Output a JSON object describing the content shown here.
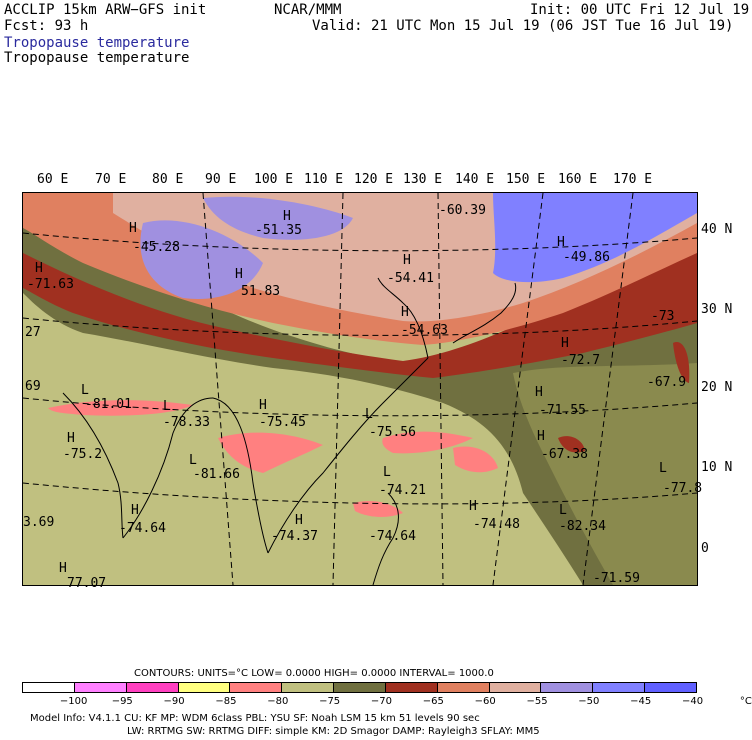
{
  "header": {
    "model": "ACCLIP 15km ARW−GFS init",
    "org": "NCAR/MMM",
    "init": "Init: 00 UTC Fri 12 Jul 19",
    "fcst": "Fcst:   93 h",
    "valid": "Valid: 21 UTC Mon 15 Jul 19 (06 JST Tue 16 Jul 19)",
    "field_title_1": "Tropopause temperature",
    "field_title_2": "Tropopause temperature"
  },
  "axes": {
    "lon_labels": [
      "60 E",
      "70 E",
      "80 E",
      "90 E",
      "100 E",
      "110 E",
      "120 E",
      "130 E",
      "140 E",
      "150 E",
      "160 E",
      "170 E"
    ],
    "lat_labels": [
      "40 N",
      "30 N",
      "20 N",
      "10 N",
      "0"
    ]
  },
  "map": {
    "extremes": [
      {
        "kind": "H",
        "value": "-45.28"
      },
      {
        "kind": "H",
        "value": "-51.35"
      },
      {
        "kind": "",
        "value": "-60.39"
      },
      {
        "kind": "H",
        "value": "-49.86"
      },
      {
        "kind": "H",
        "value": "-71.63"
      },
      {
        "kind": "H",
        "value": "51.83"
      },
      {
        "kind": "H",
        "value": "-54.41"
      },
      {
        "kind": "H",
        "value": "-54.63"
      },
      {
        "kind": "",
        "value": "-73"
      },
      {
        "kind": "",
        "value": "27"
      },
      {
        "kind": "H",
        "value": "-72.7"
      },
      {
        "kind": "",
        "value": "-67.9"
      },
      {
        "kind": "",
        "value": "69"
      },
      {
        "kind": "L",
        "value": "-81.01"
      },
      {
        "kind": "L",
        "value": "-78.33"
      },
      {
        "kind": "H",
        "value": "-75.45"
      },
      {
        "kind": "H",
        "value": "-71.55"
      },
      {
        "kind": "L",
        "value": "-75.56"
      },
      {
        "kind": "H",
        "value": "-75.2"
      },
      {
        "kind": "H",
        "value": "-67.38"
      },
      {
        "kind": "L",
        "value": "-81.66"
      },
      {
        "kind": "L",
        "value": "-77.8"
      },
      {
        "kind": "L",
        "value": "-74.21"
      },
      {
        "kind": "H",
        "value": "-74.64"
      },
      {
        "kind": "H",
        "value": "-74.48"
      },
      {
        "kind": "L",
        "value": "-82.34"
      },
      {
        "kind": "",
        "value": "3.69"
      },
      {
        "kind": "H",
        "value": "-74.37"
      },
      {
        "kind": "",
        "value": "-74.64"
      },
      {
        "kind": "",
        "value": "-71.59"
      },
      {
        "kind": "H",
        "value": "77.07"
      }
    ]
  },
  "colorbar": {
    "contour_info": "CONTOURS:  UNITS=°C  LOW=  0.0000      HIGH=  0.0000      INTERVAL=   1000.0",
    "labels": [
      "−100",
      "−95",
      "−90",
      "−85",
      "−80",
      "−75",
      "−70",
      "−65",
      "−60",
      "−55",
      "−50",
      "−45",
      "−40",
      "°C"
    ],
    "colors": [
      "#ffffff",
      "#ff80ff",
      "#ff40c0",
      "#ffff80",
      "#ff8080",
      "#c0c080",
      "#707040",
      "#a03020",
      "#e08060",
      "#e0b0a0",
      "#a090e0",
      "#8080ff",
      "#6060ff"
    ]
  },
  "footer": {
    "line1": "Model Info: V4.1.1    CU: KF       MP: WDM 6class  PBL: YSU       SF: Noah LSM    15 km   51 levels   90 sec",
    "line2": "LW: RRTMG    SW: RRTMG   DIFF: simple KM: 2D Smagor DAMP: Rayleigh3  SFLAY: MM5"
  }
}
